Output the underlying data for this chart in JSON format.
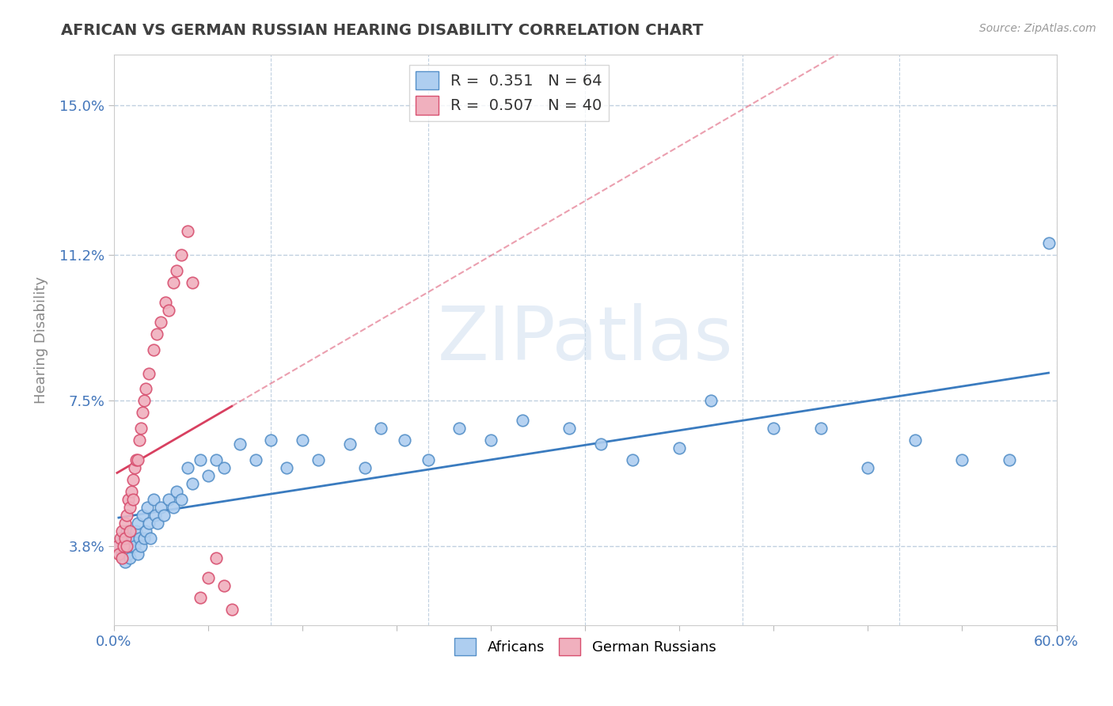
{
  "title": "AFRICAN VS GERMAN RUSSIAN HEARING DISABILITY CORRELATION CHART",
  "source_text": "Source: ZipAtlas.com",
  "ylabel": "Hearing Disability",
  "xlim": [
    0.0,
    0.6
  ],
  "ylim": [
    0.018,
    0.163
  ],
  "xticks": [
    0.0,
    0.06,
    0.12,
    0.18,
    0.24,
    0.3,
    0.36,
    0.42,
    0.48,
    0.54,
    0.6
  ],
  "xticklabels": [
    "0.0%",
    "",
    "",
    "",
    "",
    "",
    "",
    "",
    "",
    "",
    "60.0%"
  ],
  "ytick_values": [
    0.038,
    0.075,
    0.112,
    0.15
  ],
  "ytick_labels": [
    "3.8%",
    "7.5%",
    "11.2%",
    "15.0%"
  ],
  "blue_color": "#aecef0",
  "pink_color": "#f0b0be",
  "blue_edge_color": "#5590c8",
  "pink_edge_color": "#d85070",
  "blue_line_color": "#3a7bbf",
  "pink_line_color": "#d84060",
  "blue_R": 0.351,
  "blue_N": 64,
  "pink_R": 0.507,
  "pink_N": 40,
  "legend_blue_label": "Africans",
  "legend_pink_label": "German Russians",
  "watermark": "ZIPatlas",
  "background_color": "#ffffff",
  "grid_color": "#c0d0e0",
  "title_color": "#404040",
  "source_color": "#999999",
  "axis_label_color": "#888888",
  "tick_color": "#4477bb",
  "africans_x": [
    0.003,
    0.005,
    0.006,
    0.007,
    0.008,
    0.008,
    0.009,
    0.01,
    0.01,
    0.01,
    0.012,
    0.013,
    0.014,
    0.015,
    0.015,
    0.016,
    0.017,
    0.018,
    0.019,
    0.02,
    0.021,
    0.022,
    0.023,
    0.025,
    0.026,
    0.028,
    0.03,
    0.032,
    0.035,
    0.038,
    0.04,
    0.043,
    0.047,
    0.05,
    0.055,
    0.06,
    0.065,
    0.07,
    0.08,
    0.09,
    0.1,
    0.11,
    0.12,
    0.13,
    0.15,
    0.16,
    0.17,
    0.185,
    0.2,
    0.22,
    0.24,
    0.26,
    0.29,
    0.31,
    0.33,
    0.36,
    0.38,
    0.42,
    0.45,
    0.48,
    0.51,
    0.54,
    0.57,
    0.595
  ],
  "africans_y": [
    0.038,
    0.036,
    0.04,
    0.034,
    0.038,
    0.042,
    0.036,
    0.038,
    0.04,
    0.035,
    0.04,
    0.038,
    0.042,
    0.036,
    0.044,
    0.04,
    0.038,
    0.046,
    0.04,
    0.042,
    0.048,
    0.044,
    0.04,
    0.05,
    0.046,
    0.044,
    0.048,
    0.046,
    0.05,
    0.048,
    0.052,
    0.05,
    0.058,
    0.054,
    0.06,
    0.056,
    0.06,
    0.058,
    0.064,
    0.06,
    0.065,
    0.058,
    0.065,
    0.06,
    0.064,
    0.058,
    0.068,
    0.065,
    0.06,
    0.068,
    0.065,
    0.07,
    0.068,
    0.064,
    0.06,
    0.063,
    0.075,
    0.068,
    0.068,
    0.058,
    0.065,
    0.06,
    0.06,
    0.115
  ],
  "german_x": [
    0.002,
    0.003,
    0.004,
    0.005,
    0.005,
    0.006,
    0.007,
    0.007,
    0.008,
    0.008,
    0.009,
    0.01,
    0.01,
    0.011,
    0.012,
    0.012,
    0.013,
    0.014,
    0.015,
    0.016,
    0.017,
    0.018,
    0.019,
    0.02,
    0.022,
    0.025,
    0.027,
    0.03,
    0.033,
    0.035,
    0.038,
    0.04,
    0.043,
    0.047,
    0.05,
    0.055,
    0.06,
    0.065,
    0.07,
    0.075
  ],
  "german_y": [
    0.038,
    0.036,
    0.04,
    0.035,
    0.042,
    0.038,
    0.04,
    0.044,
    0.038,
    0.046,
    0.05,
    0.048,
    0.042,
    0.052,
    0.05,
    0.055,
    0.058,
    0.06,
    0.06,
    0.065,
    0.068,
    0.072,
    0.075,
    0.078,
    0.082,
    0.088,
    0.092,
    0.095,
    0.1,
    0.098,
    0.105,
    0.108,
    0.112,
    0.118,
    0.105,
    0.025,
    0.03,
    0.035,
    0.028,
    0.022
  ]
}
